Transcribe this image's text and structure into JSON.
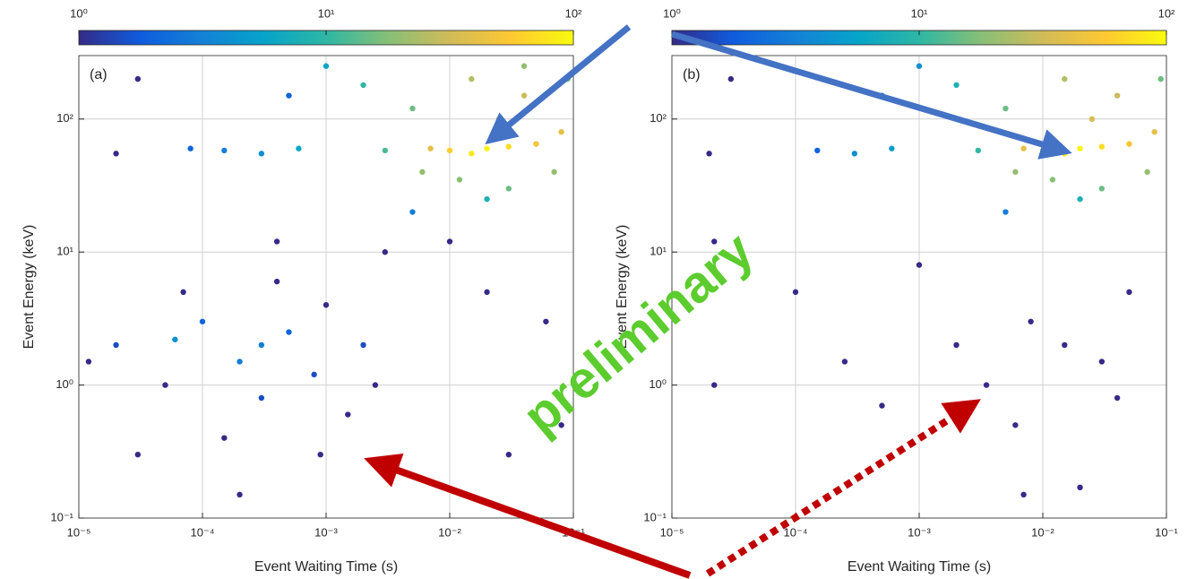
{
  "watermark": "preliminary",
  "chart_data": [
    {
      "type": "scatter",
      "annotation": "(a)",
      "x_label": "Event Waiting Time (s)",
      "y_label": "Event Energy (keV)",
      "xscale": "log",
      "yscale": "log",
      "grid": true,
      "xlim": [
        1e-05,
        0.1
      ],
      "ylim": [
        0.1,
        300
      ],
      "xticks": [
        {
          "value": 1e-05,
          "label": "10⁻⁵"
        },
        {
          "value": 0.0001,
          "label": "10⁻⁴"
        },
        {
          "value": 0.001,
          "label": "10⁻³"
        },
        {
          "value": 0.01,
          "label": "10⁻²"
        },
        {
          "value": 0.1,
          "label": "10⁻¹"
        }
      ],
      "yticks": [
        {
          "value": 0.1,
          "label": "10⁻¹"
        },
        {
          "value": 1,
          "label": "10⁰"
        },
        {
          "value": 10,
          "label": "10¹"
        },
        {
          "value": 100,
          "label": "10²"
        }
      ],
      "colormap": "parula",
      "clim": [
        1,
        100
      ],
      "cticks": [
        {
          "value": 1,
          "label": "10⁰"
        },
        {
          "value": 10,
          "label": "10¹"
        },
        {
          "value": 100,
          "label": "10²"
        }
      ],
      "x": [
        2e-05,
        5e-05,
        0.0001,
        0.0002,
        0.0003,
        0.0005,
        0.0008,
        0.001,
        0.0015,
        0.002,
        3e-05,
        7e-05,
        0.00015,
        0.0004,
        0.0025,
        1.2e-05,
        6e-05,
        0.0003,
        0.0009,
        0.0002,
        0.003,
        0.02,
        0.06,
        0.01,
        0.0004,
        0.08,
        0.03,
        2e-05,
        3e-05,
        0.0005,
        0.001,
        0.002,
        0.005,
        0.003,
        0.0006,
        0.0003,
        0.00015,
        8e-05,
        0.005,
        0.02,
        0.006,
        0.012,
        0.03,
        0.07,
        0.025,
        0.04,
        0.015,
        0.08,
        0.09,
        0.04,
        0.01,
        0.05,
        0.007,
        0.03,
        0.015,
        0.02
      ],
      "values": [
        2,
        1,
        3,
        1.5,
        0.8,
        2.5,
        1.2,
        4,
        0.6,
        2,
        0.3,
        5,
        0.4,
        6,
        1,
        1.5,
        2.2,
        2,
        0.3,
        0.15,
        10,
        5,
        3,
        12,
        12,
        0.5,
        0.3,
        55,
        200,
        150,
        250,
        180,
        20,
        58,
        60,
        55,
        58,
        60,
        120,
        25,
        40,
        35,
        30,
        40,
        100,
        150,
        200,
        80,
        200,
        250,
        58,
        65,
        60,
        62,
        55,
        60
      ],
      "color_values": [
        1.5,
        1,
        2,
        3,
        1.5,
        2,
        1.5,
        1,
        1,
        1.5,
        1,
        1,
        1,
        1,
        1,
        1,
        4,
        3,
        1,
        1,
        1,
        1,
        1,
        1,
        1,
        1,
        1,
        1,
        1,
        2,
        6,
        10,
        3,
        12,
        6,
        4,
        3,
        2,
        15,
        8,
        20,
        18,
        15,
        20,
        35,
        30,
        25,
        40,
        15,
        20,
        60,
        50,
        40,
        70,
        80,
        90
      ]
    },
    {
      "type": "scatter",
      "annotation": "(b)",
      "x_label": "Event Waiting Time (s)",
      "y_label": "Event Energy (keV)",
      "xscale": "log",
      "yscale": "log",
      "grid": true,
      "xlim": [
        1e-05,
        0.1
      ],
      "ylim": [
        0.1,
        300
      ],
      "xticks": [
        {
          "value": 1e-05,
          "label": "10⁻⁵"
        },
        {
          "value": 0.0001,
          "label": "10⁻⁴"
        },
        {
          "value": 0.001,
          "label": "10⁻³"
        },
        {
          "value": 0.01,
          "label": "10⁻²"
        },
        {
          "value": 0.1,
          "label": "10⁻¹"
        }
      ],
      "yticks": [
        {
          "value": 0.1,
          "label": "10⁻¹"
        },
        {
          "value": 1,
          "label": "10⁰"
        },
        {
          "value": 10,
          "label": "10¹"
        },
        {
          "value": 100,
          "label": "10²"
        }
      ],
      "colormap": "parula",
      "clim": [
        1,
        100
      ],
      "cticks": [
        {
          "value": 1,
          "label": "10⁰"
        },
        {
          "value": 10,
          "label": "10¹"
        },
        {
          "value": 100,
          "label": "10²"
        }
      ],
      "x": [
        0.002,
        0.0035,
        0.008,
        0.015,
        0.03,
        0.0005,
        2.2e-05,
        0.0001,
        0.006,
        0.05,
        0.02,
        0.001,
        0.00025,
        2.2e-05,
        0.007,
        0.04,
        2e-05,
        3e-05,
        0.0005,
        0.001,
        0.002,
        0.005,
        0.003,
        0.0006,
        0.0003,
        0.00015,
        0.005,
        0.02,
        0.006,
        0.012,
        0.03,
        0.07,
        0.025,
        0.04,
        0.015,
        0.08,
        0.09,
        0.01,
        0.05,
        0.007,
        0.03,
        0.015,
        0.02
      ],
      "values": [
        2,
        1,
        3,
        2,
        1.5,
        0.7,
        1,
        5,
        0.5,
        5,
        0.17,
        8,
        1.5,
        12,
        0.15,
        0.8,
        55,
        200,
        150,
        250,
        180,
        20,
        58,
        60,
        55,
        58,
        120,
        25,
        40,
        35,
        30,
        40,
        100,
        150,
        200,
        80,
        200,
        58,
        65,
        60,
        62,
        55,
        60
      ],
      "color_values": [
        1,
        1,
        1,
        1,
        1,
        1,
        1,
        1,
        1,
        1,
        1,
        1,
        1,
        1,
        1,
        1,
        1,
        1,
        2,
        4,
        8,
        3,
        10,
        5,
        4,
        2,
        15,
        8,
        20,
        18,
        15,
        20,
        35,
        30,
        25,
        40,
        15,
        60,
        50,
        40,
        70,
        80,
        90
      ]
    }
  ]
}
